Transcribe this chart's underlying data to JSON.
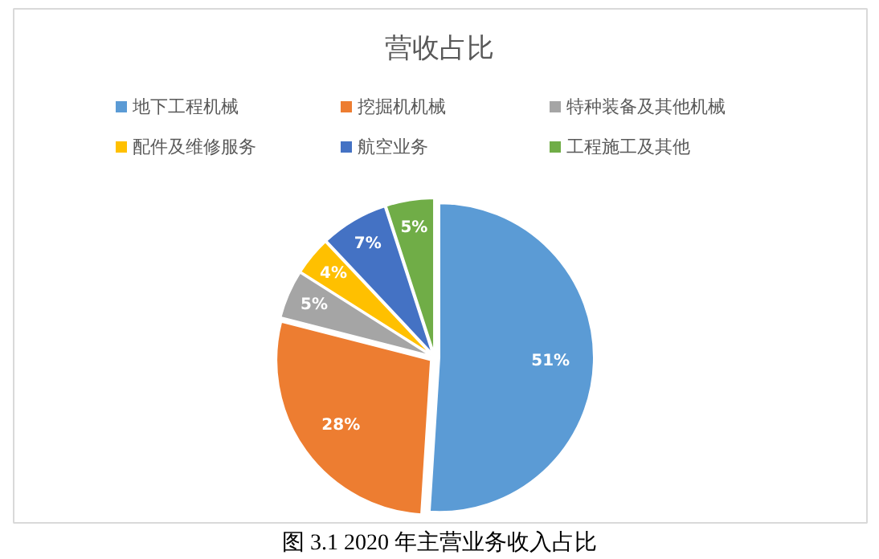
{
  "chart_data": {
    "type": "pie",
    "title": "营收占比",
    "categories": [
      "地下工程机械",
      "挖掘机机械",
      "特种装备及其他机械",
      "配件及维修服务",
      "航空业务",
      "工程施工及其他"
    ],
    "values": [
      51,
      28,
      5,
      4,
      7,
      5
    ],
    "colors": [
      "#5b9bd5",
      "#ed7d31",
      "#a5a5a5",
      "#ffc000",
      "#4472c4",
      "#70ad47"
    ],
    "value_labels": [
      "51%",
      "28%",
      "5%",
      "4%",
      "7%",
      "5%"
    ],
    "legend": "top",
    "annotations": [
      "图 3.1 2020 年主营业务收入占比"
    ]
  }
}
